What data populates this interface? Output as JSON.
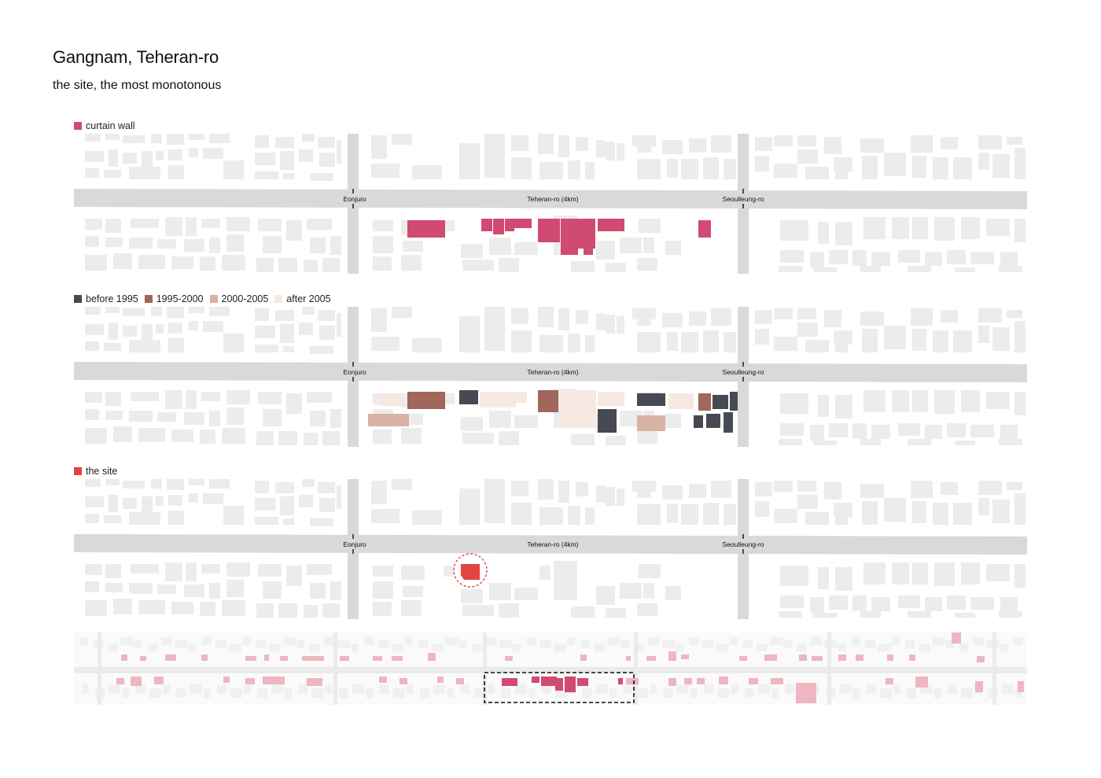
{
  "header": {
    "title": "Gangnam, Teheran-ro",
    "subtitle": "the site, the most monotonous"
  },
  "panels": [
    {
      "id": "curtain-wall",
      "legend": [
        {
          "label": "curtain wall",
          "color": "#d14a72"
        }
      ],
      "road_labels": {
        "left": "Eonjuro",
        "center": "Teheran-ro (4km)",
        "right": "Seoulleung-ro"
      }
    },
    {
      "id": "age",
      "legend": [
        {
          "label": "before 1995",
          "color": "#474a52"
        },
        {
          "label": "1995-2000",
          "color": "#a0675a"
        },
        {
          "label": "2000-2005",
          "color": "#d8b2a4"
        },
        {
          "label": "after 2005",
          "color": "#f7e8e2"
        }
      ],
      "road_labels": {
        "left": "Eonjuro",
        "center": "Teheran-ro (4km)",
        "right": "Seoulleung-ro"
      }
    },
    {
      "id": "site",
      "legend": [
        {
          "label": "the site",
          "color": "#e2443f"
        }
      ],
      "road_labels": {
        "left": "Eonjuro",
        "center": "Teheran-ro (4km)",
        "right": "Seoulleung-ro"
      }
    }
  ],
  "colors": {
    "base_building": "#ececec",
    "road": "#d9d9d9",
    "overview_building": "#eeb6c0",
    "overview_highlight": "#d14a72",
    "site_marker": "#e2443f"
  }
}
